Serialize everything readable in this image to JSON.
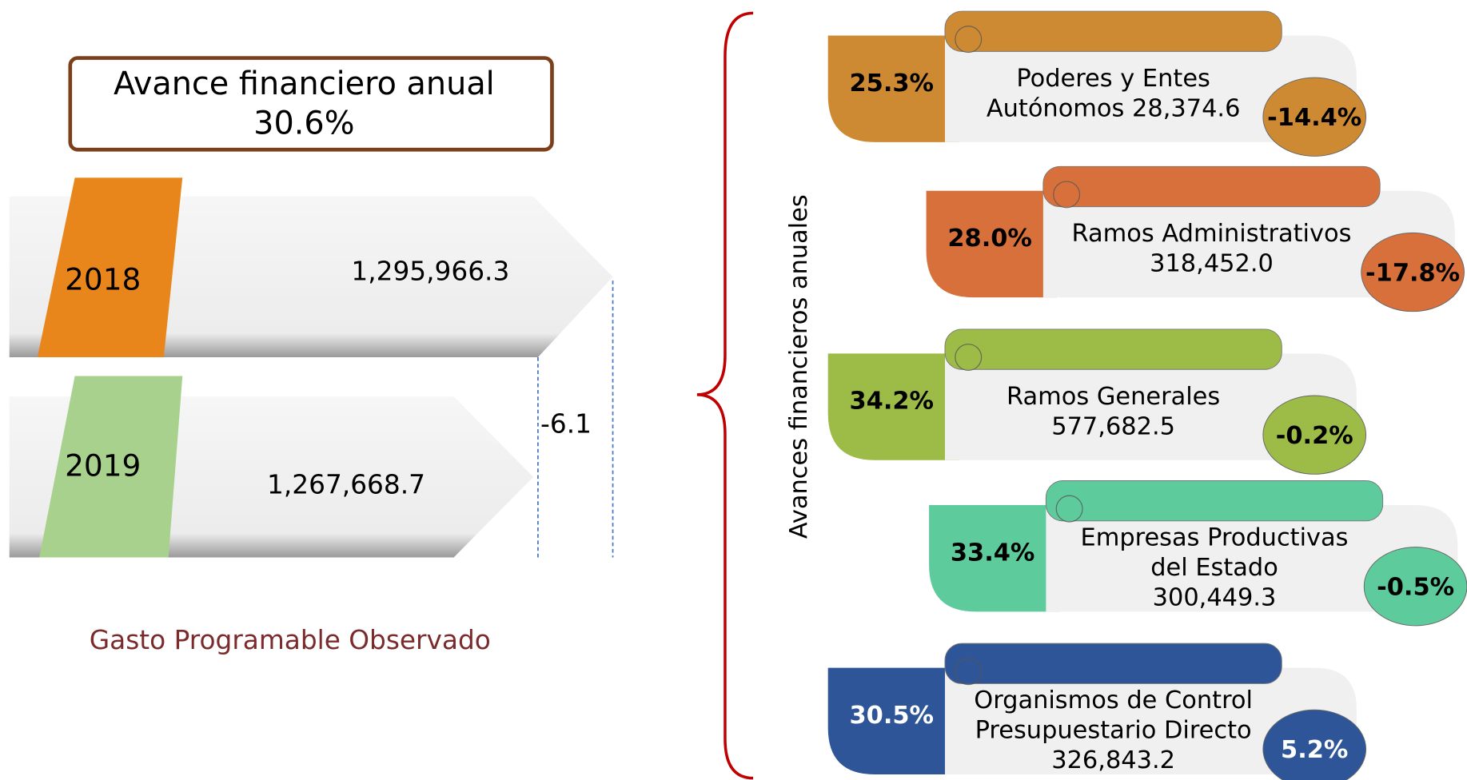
{
  "summary": {
    "title": "Avance financiero anual",
    "value": "30.6%"
  },
  "years": [
    {
      "year": "2018",
      "amount": "1,295,966.3",
      "color": "#e8861c"
    },
    {
      "year": "2019",
      "amount": "1,267,668.7",
      "color": "#a8d18d"
    }
  ],
  "difference": "-6.1",
  "caption": "Gasto Programable Observado",
  "brace_label": "Avances financieros anuales",
  "items": [
    {
      "advance": "25.3%",
      "name_lines": [
        "Poderes y Entes",
        "Autónomos 28,374.6"
      ],
      "change": "-14.4%",
      "color": "#cd8a33",
      "text_color": "#000000"
    },
    {
      "advance": "28.0%",
      "name_lines": [
        "Ramos Administrativos",
        "318,452.0"
      ],
      "change": "-17.8%",
      "color": "#d8703c",
      "text_color": "#000000"
    },
    {
      "advance": "34.2%",
      "name_lines": [
        "Ramos Generales",
        "577,682.5"
      ],
      "change": "-0.2%",
      "color": "#9cbb47",
      "text_color": "#000000"
    },
    {
      "advance": "33.4%",
      "name_lines": [
        "Empresas Productivas",
        "del Estado",
        "300,449.3"
      ],
      "change": "-0.5%",
      "color": "#5ecb9c",
      "text_color": "#000000"
    },
    {
      "advance": "30.5%",
      "name_lines": [
        "Organismos de Control",
        "Presupuestario Directo",
        "326,843.2"
      ],
      "change": "5.2%",
      "color": "#2e5597",
      "text_color": "#ffffff"
    }
  ]
}
